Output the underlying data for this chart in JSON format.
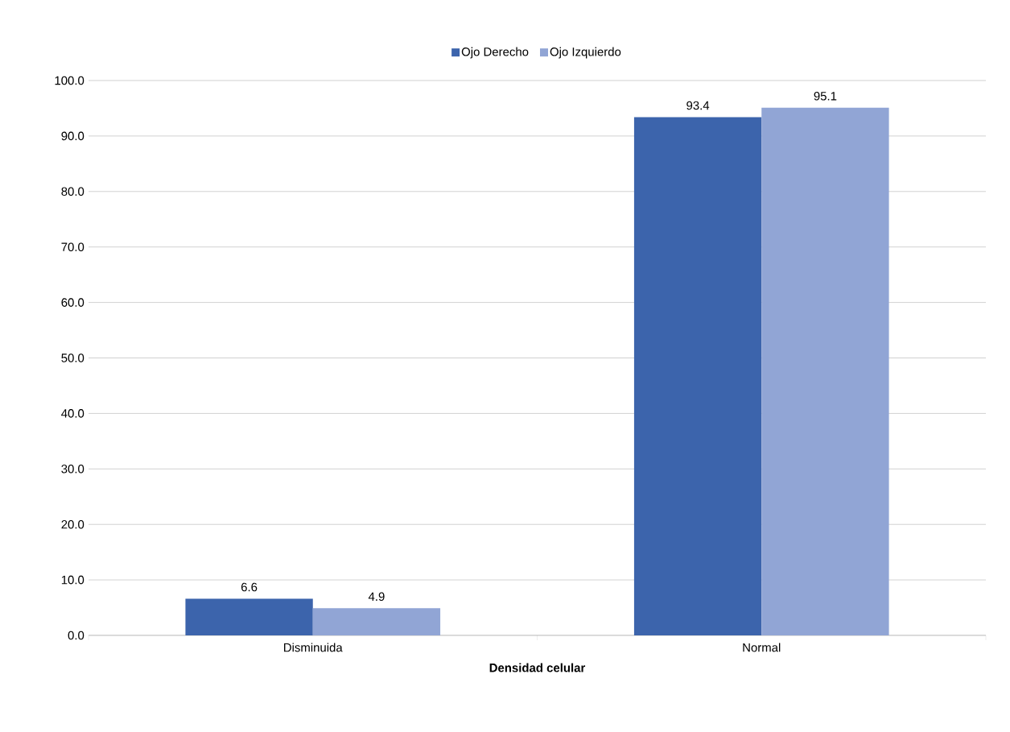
{
  "chart_data": {
    "type": "bar",
    "xlabel": "Densidad celular",
    "categories": [
      "Disminuida",
      "Normal"
    ],
    "series": [
      {
        "name": "Ojo Derecho",
        "color": "#3c64ac",
        "values": [
          6.6,
          93.4
        ]
      },
      {
        "name": "Ojo Izquierdo",
        "color": "#91a5d5",
        "values": [
          4.9,
          95.1
        ]
      }
    ],
    "ylim": [
      0,
      100
    ],
    "yticks": [
      {
        "value": 0,
        "label": "0.0"
      },
      {
        "value": 10,
        "label": "10.0"
      },
      {
        "value": 20,
        "label": "20.0"
      },
      {
        "value": 30,
        "label": "30.0"
      },
      {
        "value": 40,
        "label": "40.0"
      },
      {
        "value": 50,
        "label": "50.0"
      },
      {
        "value": 60,
        "label": "60.0"
      },
      {
        "value": 70,
        "label": "70.0"
      },
      {
        "value": 80,
        "label": "80.0"
      },
      {
        "value": 90,
        "label": "90.0"
      },
      {
        "value": 100,
        "label": "100.0"
      }
    ],
    "grid": "y",
    "legend": "top",
    "data_labels": true
  }
}
